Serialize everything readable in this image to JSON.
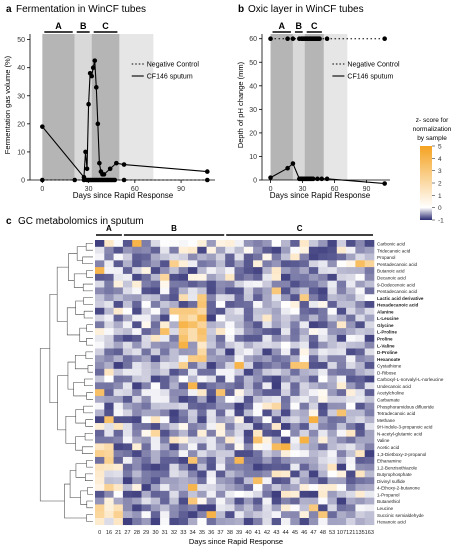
{
  "panel_a": {
    "letter": "a",
    "title": "Fermentation in WinCF tubes",
    "ylabel": "Fermentation gas volume (%)",
    "legend": [
      "Negative Control",
      "CF146 sputum"
    ]
  },
  "panel_b": {
    "letter": "b",
    "title": "Oxic layer in WinCF tubes",
    "ylabel": "Depth of pH change (mm)",
    "legend": [
      "Negative Control",
      "CF146 sputum"
    ]
  },
  "panel_c": {
    "letter": "c",
    "title": "GC metabolomics in sputum",
    "xlabel": "Days since Rapid Response"
  },
  "shared_xlabel": "Days since Rapid Response",
  "colorbar": {
    "title_lines": [
      "z- score for",
      "normalization",
      "by sample"
    ],
    "ticks": [
      "5",
      "4",
      "3",
      "2",
      "1",
      "0",
      "-1"
    ],
    "colors": {
      "high": "#f5a321",
      "mid": "#ffffff",
      "low": "#2a2a72"
    }
  },
  "phases": [
    "A",
    "B",
    "C"
  ],
  "chart_data": [
    {
      "type": "line",
      "panel": "a",
      "xlim": [
        -8,
        112
      ],
      "ylim": [
        0,
        52
      ],
      "xticks": [
        0,
        30,
        60,
        90
      ],
      "yticks": [
        0,
        10,
        20,
        30,
        40,
        50
      ],
      "phase_ranges": [
        {
          "label": "A",
          "x": [
            0,
            21
          ]
        },
        {
          "label": "B",
          "x": [
            21,
            32
          ]
        },
        {
          "label": "C",
          "x": [
            32,
            50
          ]
        }
      ],
      "series": [
        {
          "name": "Negative Control",
          "style": "dotted",
          "x": [
            0,
            21,
            27,
            29,
            30,
            31,
            32,
            33,
            34,
            35,
            36,
            37,
            38,
            39,
            40,
            41,
            42,
            43,
            44,
            45,
            46,
            47,
            53,
            107
          ],
          "y": [
            0,
            0,
            0,
            0,
            0,
            0,
            0,
            0,
            0,
            0,
            0,
            0,
            0,
            0,
            0,
            0,
            0,
            0,
            0,
            0,
            0,
            0,
            0,
            0
          ]
        },
        {
          "name": "CF146 sputum",
          "style": "solid",
          "x": [
            0,
            27,
            28,
            29,
            30,
            31,
            32,
            33,
            34,
            35,
            36,
            37,
            38,
            39,
            40,
            44,
            48,
            53,
            107
          ],
          "y": [
            19,
            1,
            10,
            4,
            27,
            38,
            37,
            40,
            42.5,
            33,
            20,
            6,
            3,
            2,
            2,
            4,
            6,
            5.5,
            3
          ]
        }
      ]
    },
    {
      "type": "line",
      "panel": "b",
      "xlim": [
        -8,
        112
      ],
      "ylim": [
        0,
        62
      ],
      "xticks": [
        0,
        30,
        60,
        90
      ],
      "yticks": [
        0,
        10,
        20,
        30,
        40,
        50,
        60
      ],
      "phase_ranges": [
        {
          "label": "A",
          "x": [
            0,
            21
          ]
        },
        {
          "label": "B",
          "x": [
            21,
            32
          ]
        },
        {
          "label": "C",
          "x": [
            32,
            50
          ]
        }
      ],
      "series": [
        {
          "name": "Negative Control",
          "style": "dotted",
          "x": [
            0,
            16,
            21,
            27,
            29,
            30,
            31,
            32,
            33,
            34,
            35,
            36,
            37,
            38,
            39,
            40,
            41,
            42,
            43,
            44,
            45,
            46,
            53,
            107
          ],
          "y": [
            60,
            60,
            60,
            60,
            60,
            60,
            60,
            60,
            60,
            60,
            60,
            60,
            60,
            60,
            60,
            60,
            60,
            60,
            60,
            60,
            60,
            60,
            60,
            60
          ]
        },
        {
          "name": "CF146 sputum",
          "style": "solid",
          "x": [
            0,
            16,
            21,
            27,
            28,
            29,
            30,
            31,
            32,
            33,
            34,
            35,
            36,
            37,
            38,
            39,
            40,
            44,
            48,
            53,
            107
          ],
          "y": [
            1,
            5,
            7,
            0.5,
            0.5,
            0.5,
            0.5,
            0.5,
            0.5,
            0.5,
            0.5,
            0.5,
            0.5,
            0.5,
            0.5,
            0.5,
            0.5,
            0.5,
            0.5,
            0.5,
            -1.5
          ]
        }
      ]
    },
    {
      "type": "heatmap",
      "panel": "c",
      "x_categories": [
        "0",
        "16",
        "21",
        "27",
        "28",
        "29",
        "30",
        "31",
        "32",
        "33",
        "34",
        "35",
        "36",
        "37",
        "38",
        "39",
        "40",
        "41",
        "42",
        "43",
        "44",
        "45",
        "46",
        "47",
        "48",
        "53",
        "107",
        "121",
        "135",
        "163"
      ],
      "y_categories": [
        "Carbonic acid",
        "Tridecanoic acid",
        "Propanol",
        "Pentadecanoic acid",
        "Butanoic acid",
        "Decanoic acid",
        "9-Dodecenoic acid",
        "Pentadecanoic acid",
        "Lactic acid derivative",
        "Hexadecanoic acid",
        "Alanine",
        "L-Leucine",
        "Glycine",
        "L-Proline",
        "Proline",
        "L-Valine",
        "D-Proline",
        "Hexanoate",
        "Cystathione",
        "D-Ribose",
        "Carboxyl-L-norvalyl-L-norleucine",
        "Undecanoic acid",
        "Acetylcholine",
        "Carbamate",
        "Phosphoramidous difluoride",
        "Tetradecanoic acid",
        "Methane",
        "9H-Indole-3-propanoic acid",
        "N-acetyl-glutamic acid",
        "Valine",
        "Acetic acid",
        "1,3-Dietboxy-2-propanol",
        "Ethanamine",
        "1,2-Benzisothiazole",
        "Butyrophosphate",
        "Divinyl sulfide",
        "4-Ethoxy-2-butanone",
        "1-Propanol",
        "Butanethiol",
        "Leucine",
        "Succinic semialdehyde",
        "Hexanoic acid"
      ],
      "bold_rows": [
        8,
        9,
        10,
        11,
        12,
        13,
        14,
        15,
        16,
        17
      ],
      "phase_columns": [
        {
          "label": "A",
          "cols": [
            0,
            2
          ]
        },
        {
          "label": "B",
          "cols": [
            3,
            13
          ]
        },
        {
          "label": "C",
          "cols": [
            14,
            29
          ]
        }
      ],
      "value_range": [
        -1,
        5
      ],
      "values_seed": 146
    }
  ]
}
